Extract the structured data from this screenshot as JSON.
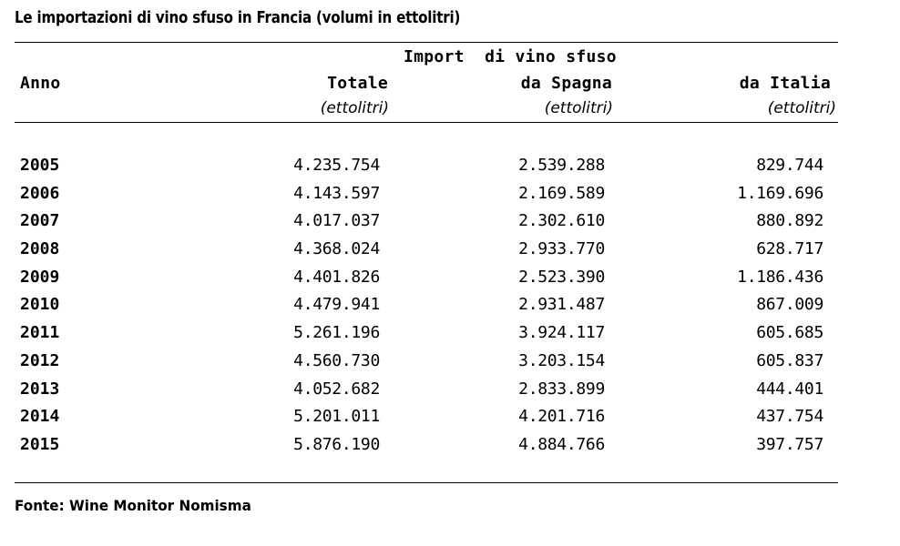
{
  "title": "Le importazioni di vino sfuso in Francia (volumi in ettolitri)",
  "header": {
    "group_label": "Import  di vino sfuso",
    "col_anno": "Anno",
    "col_totale": "Totale",
    "col_spagna": "da Spagna",
    "col_italia": "da Italia",
    "unit": "(ettolitri)"
  },
  "rows": [
    {
      "anno": "2005",
      "totale": "4.235.754",
      "spagna": "2.539.288",
      "italia": "829.744"
    },
    {
      "anno": "2006",
      "totale": "4.143.597",
      "spagna": "2.169.589",
      "italia": "1.169.696"
    },
    {
      "anno": "2007",
      "totale": "4.017.037",
      "spagna": "2.302.610",
      "italia": "880.892"
    },
    {
      "anno": "2008",
      "totale": "4.368.024",
      "spagna": "2.933.770",
      "italia": "628.717"
    },
    {
      "anno": "2009",
      "totale": "4.401.826",
      "spagna": "2.523.390",
      "italia": "1.186.436"
    },
    {
      "anno": "2010",
      "totale": "4.479.941",
      "spagna": "2.931.487",
      "italia": "867.009"
    },
    {
      "anno": "2011",
      "totale": "5.261.196",
      "spagna": "3.924.117",
      "italia": "605.685"
    },
    {
      "anno": "2012",
      "totale": "4.560.730",
      "spagna": "3.203.154",
      "italia": "605.837"
    },
    {
      "anno": "2013",
      "totale": "4.052.682",
      "spagna": "2.833.899",
      "italia": "444.401"
    },
    {
      "anno": "2014",
      "totale": "5.201.011",
      "spagna": "4.201.716",
      "italia": "437.754"
    },
    {
      "anno": "2015",
      "totale": "5.876.190",
      "spagna": "4.884.766",
      "italia": "397.757"
    }
  ],
  "source": "Fonte: Wine Monitor Nomisma"
}
